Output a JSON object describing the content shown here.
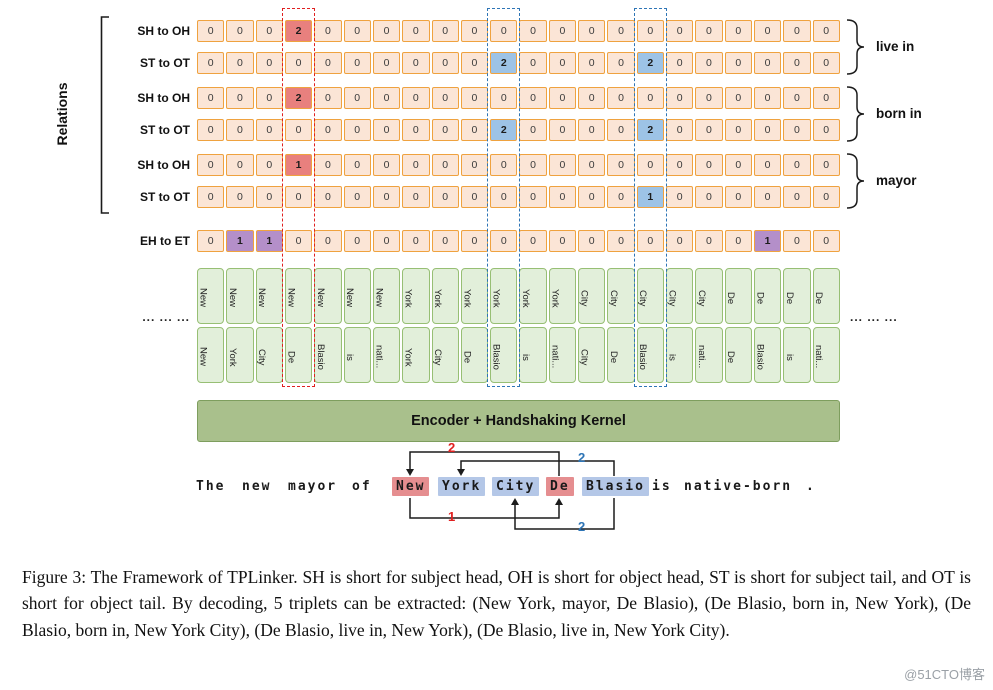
{
  "axis": {
    "relations_label": "Relations"
  },
  "encoder": {
    "label": "Encoder + Handshaking Kernel"
  },
  "tokens": {
    "ellipsis_left": "... ... ...",
    "ellipsis_right": "... ... ..."
  },
  "matrix": {
    "groups": [
      {
        "relation": "live in",
        "rows": [
          {
            "label": "SH to OH",
            "cells": [
              0,
              0,
              0,
              2,
              0,
              0,
              0,
              0,
              0,
              0,
              0,
              0,
              0,
              0,
              0,
              0,
              0,
              0,
              0,
              0,
              0,
              0
            ],
            "highlights": {
              "3": "red"
            }
          },
          {
            "label": "ST to OT",
            "cells": [
              0,
              0,
              0,
              0,
              0,
              0,
              0,
              0,
              0,
              0,
              2,
              0,
              0,
              0,
              0,
              2,
              0,
              0,
              0,
              0,
              0,
              0
            ],
            "highlights": {
              "10": "blue",
              "15": "blue"
            }
          }
        ]
      },
      {
        "relation": "born in",
        "rows": [
          {
            "label": "SH to OH",
            "cells": [
              0,
              0,
              0,
              2,
              0,
              0,
              0,
              0,
              0,
              0,
              0,
              0,
              0,
              0,
              0,
              0,
              0,
              0,
              0,
              0,
              0,
              0
            ],
            "highlights": {
              "3": "red"
            }
          },
          {
            "label": "ST to OT",
            "cells": [
              0,
              0,
              0,
              0,
              0,
              0,
              0,
              0,
              0,
              0,
              2,
              0,
              0,
              0,
              0,
              2,
              0,
              0,
              0,
              0,
              0,
              0
            ],
            "highlights": {
              "10": "blue",
              "15": "blue"
            }
          }
        ]
      },
      {
        "relation": "mayor",
        "rows": [
          {
            "label": "SH to OH",
            "cells": [
              0,
              0,
              0,
              1,
              0,
              0,
              0,
              0,
              0,
              0,
              0,
              0,
              0,
              0,
              0,
              0,
              0,
              0,
              0,
              0,
              0,
              0
            ],
            "highlights": {
              "3": "red"
            }
          },
          {
            "label": "ST to OT",
            "cells": [
              0,
              0,
              0,
              0,
              0,
              0,
              0,
              0,
              0,
              0,
              0,
              0,
              0,
              0,
              0,
              1,
              0,
              0,
              0,
              0,
              0,
              0
            ],
            "highlights": {
              "15": "blue"
            }
          }
        ]
      }
    ],
    "entity_row": {
      "label": "EH to ET",
      "cells": [
        0,
        1,
        1,
        0,
        0,
        0,
        0,
        0,
        0,
        0,
        0,
        0,
        0,
        0,
        0,
        0,
        0,
        0,
        0,
        1,
        0,
        0
      ],
      "highlights": {
        "1": "purple",
        "2": "purple",
        "19": "purple"
      }
    },
    "token_pairs": [
      [
        "New",
        "New"
      ],
      [
        "New",
        "York"
      ],
      [
        "New",
        "City"
      ],
      [
        "New",
        "De"
      ],
      [
        "New",
        "Blasio"
      ],
      [
        "New",
        "is"
      ],
      [
        "New",
        "nati..."
      ],
      [
        "York",
        "York"
      ],
      [
        "York",
        "City"
      ],
      [
        "York",
        "De"
      ],
      [
        "York",
        "Blasio"
      ],
      [
        "York",
        "is"
      ],
      [
        "York",
        "nati..."
      ],
      [
        "City",
        "City"
      ],
      [
        "City",
        "De"
      ],
      [
        "City",
        "Blasio"
      ],
      [
        "City",
        "is"
      ],
      [
        "City",
        "nati..."
      ],
      [
        "De",
        "De"
      ],
      [
        "De",
        "Blasio"
      ],
      [
        "De",
        "is"
      ],
      [
        "De",
        "nati..."
      ]
    ],
    "dashed_columns": [
      {
        "index": 3,
        "color": "red"
      },
      {
        "index": 10,
        "color": "blue"
      },
      {
        "index": 15,
        "color": "blue"
      }
    ]
  },
  "sentence": {
    "words": [
      {
        "text": "The"
      },
      {
        "text": "new"
      },
      {
        "text": "mayor"
      },
      {
        "text": "of"
      },
      {
        "text": "New",
        "highlight": "red"
      },
      {
        "text": "York",
        "highlight": "blue"
      },
      {
        "text": "City",
        "highlight": "blue"
      },
      {
        "text": "De",
        "highlight": "red"
      },
      {
        "text": "Blasio",
        "highlight": "blue"
      },
      {
        "text": "is"
      },
      {
        "text": "native-born"
      },
      {
        "text": "."
      }
    ],
    "arrows": [
      {
        "label": "2",
        "color": "red",
        "side": "top",
        "from": "De",
        "to": "New"
      },
      {
        "label": "2",
        "color": "blue",
        "side": "top",
        "from": "Blasio",
        "to": "York"
      },
      {
        "label": "1",
        "color": "red",
        "side": "bottom",
        "from": "New",
        "to": "De"
      },
      {
        "label": "2",
        "color": "blue",
        "side": "bottom",
        "from": "Blasio",
        "to": "City"
      }
    ]
  },
  "caption": "Figure 3: The Framework of TPLinker. SH is short for subject head, OH is short for object head, ST is short for subject tail, and OT is short for object tail. By decoding, 5 triplets can be extracted: (New York, mayor, De Blasio), (De Blasio, born in, New York), (De Blasio, born in, New York City), (De Blasio, live in, New York), (De Blasio, live in, New York City).",
  "watermark": "@51CTO博客",
  "colors": {
    "cell_bg": "#fbe5d6",
    "cell_border": "#efa23f",
    "highlight_red": "#e8807e",
    "highlight_blue": "#9dc3e6",
    "highlight_purple": "#b48fc9",
    "token_bg": "#e2efda",
    "token_border": "#97bf74",
    "encoder_bg": "#a9c08c",
    "encoder_border": "#7e9e5e",
    "dashed_red": "#e02020",
    "dashed_blue": "#2e75b6",
    "word_red": "#e58e90",
    "word_blue": "#b4c7e7"
  }
}
